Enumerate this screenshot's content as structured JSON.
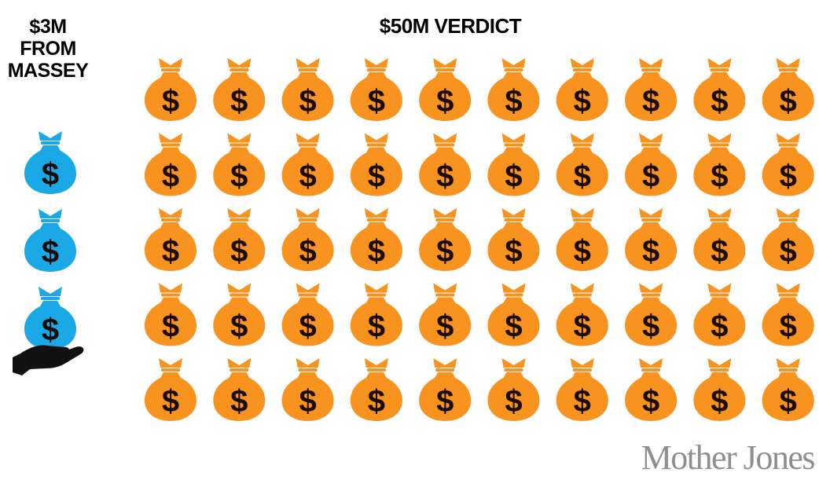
{
  "chart_data": {
    "type": "pictogram",
    "unit": "$1M",
    "series": [
      {
        "name_lines": [
          "$3M",
          "FROM",
          "MASSEY"
        ],
        "count": 3,
        "color": "#1aa9e6"
      },
      {
        "name": "$50M VERDICT",
        "count": 50,
        "rows": 5,
        "columns": 10,
        "color": "#f7931e"
      }
    ]
  },
  "icons": {
    "bag": "money-bag-icon",
    "hand": "open-hand-icon"
  },
  "colors": {
    "symbol": "#1a0a0a",
    "hand": "#111111",
    "logo": "#8f8f8f"
  },
  "logo_text": "Mother Jones"
}
